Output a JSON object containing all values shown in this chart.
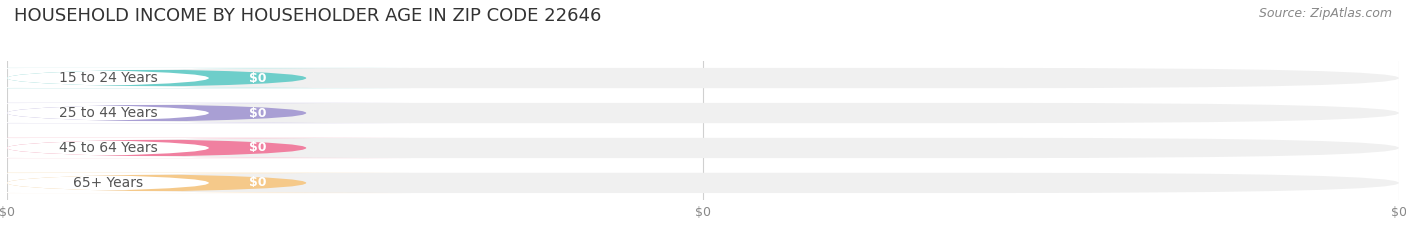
{
  "title": "HOUSEHOLD INCOME BY HOUSEHOLDER AGE IN ZIP CODE 22646",
  "source": "Source: ZipAtlas.com",
  "categories": [
    "15 to 24 Years",
    "25 to 44 Years",
    "45 to 64 Years",
    "65+ Years"
  ],
  "values": [
    0,
    0,
    0,
    0
  ],
  "bar_colors": [
    "#6ececa",
    "#a99fd4",
    "#f080a0",
    "#f5c98a"
  ],
  "label_pill_colors": [
    "#e8f7f7",
    "#e8e6f5",
    "#fce8ee",
    "#fdebd0"
  ],
  "bar_bg_color": "#f0f0f0",
  "title_fontsize": 13,
  "source_fontsize": 9,
  "tick_fontsize": 9,
  "label_fontsize": 10,
  "value_label_color": "#ffffff",
  "category_label_color": "#555555",
  "background_color": "#ffffff",
  "xlim": [
    0,
    1
  ],
  "bar_height": 0.58
}
